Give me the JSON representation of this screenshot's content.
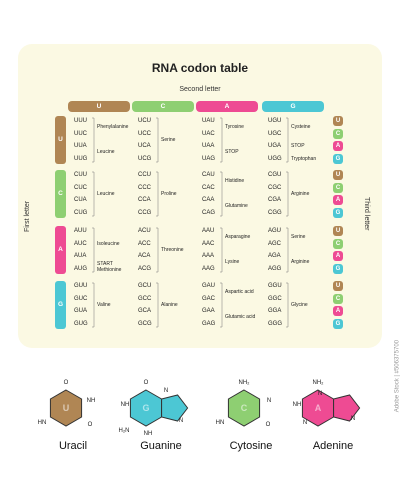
{
  "title": "RNA codon table",
  "second_letter_label": "Second letter",
  "first_letter_label": "First letter",
  "third_letter_label": "Third letter",
  "colors": {
    "U": "#b08654",
    "C": "#8ecf72",
    "A": "#ee4b93",
    "G": "#4cc7d4",
    "panel": "#fbf9e3"
  },
  "second_letters": [
    "U",
    "C",
    "A",
    "G"
  ],
  "third_letters": [
    "U",
    "C",
    "A",
    "G"
  ],
  "rows": [
    {
      "first": "U",
      "codons": [
        [
          "UUU",
          "UCU",
          "UAU",
          "UGU"
        ],
        [
          "UUC",
          "UCC",
          "UAC",
          "UGC"
        ],
        [
          "UUA",
          "UCA",
          "UAA",
          "UGA"
        ],
        [
          "UUG",
          "UCG",
          "UAG",
          "UGG"
        ]
      ],
      "amino": {
        "U": [
          {
            "name": "Phenylalanine",
            "at": 0.5
          },
          {
            "name": "Leucine",
            "at": 2.5
          }
        ],
        "C": [
          {
            "name": "Serine",
            "at": 1.5
          }
        ],
        "A": [
          {
            "name": "Tyrosine",
            "at": 0.5
          },
          {
            "name": "STOP",
            "at": 2.5
          }
        ],
        "G": [
          {
            "name": "Cysteine",
            "at": 0.5
          },
          {
            "name": "STOP",
            "at": 2
          },
          {
            "name": "Tryptophan",
            "at": 3
          }
        ]
      }
    },
    {
      "first": "C",
      "codons": [
        [
          "CUU",
          "CCU",
          "CAU",
          "CGU"
        ],
        [
          "CUC",
          "CCC",
          "CAC",
          "CGC"
        ],
        [
          "CUA",
          "CCA",
          "CAA",
          "CGA"
        ],
        [
          "CUG",
          "CCG",
          "CAG",
          "CGG"
        ]
      ],
      "amino": {
        "U": [
          {
            "name": "Leucine",
            "at": 1.5
          }
        ],
        "C": [
          {
            "name": "Proline",
            "at": 1.5
          }
        ],
        "A": [
          {
            "name": "Histidine",
            "at": 0.5
          },
          {
            "name": "Glutamine",
            "at": 2.5
          }
        ],
        "G": [
          {
            "name": "Arginine",
            "at": 1.5
          }
        ]
      }
    },
    {
      "first": "A",
      "codons": [
        [
          "AUU",
          "ACU",
          "AAU",
          "AGU"
        ],
        [
          "AUC",
          "ACC",
          "AAC",
          "AGC"
        ],
        [
          "AUA",
          "ACA",
          "AAA",
          "AGA"
        ],
        [
          "AUG",
          "ACG",
          "AAG",
          "AGG"
        ]
      ],
      "amino": {
        "U": [
          {
            "name": "Isoleucine",
            "at": 1
          },
          {
            "name": "START",
            "at": 2.6
          },
          {
            "name": "Methionine",
            "at": 3.1
          }
        ],
        "C": [
          {
            "name": "Threonine",
            "at": 1.5
          }
        ],
        "A": [
          {
            "name": "Asparagine",
            "at": 0.5
          },
          {
            "name": "Lysine",
            "at": 2.5
          }
        ],
        "G": [
          {
            "name": "Serine",
            "at": 0.5
          },
          {
            "name": "Arginine",
            "at": 2.5
          }
        ]
      }
    },
    {
      "first": "G",
      "codons": [
        [
          "GUU",
          "GCU",
          "GAU",
          "GGU"
        ],
        [
          "GUC",
          "GCC",
          "GAC",
          "GGC"
        ],
        [
          "GUA",
          "GCA",
          "GAA",
          "GGA"
        ],
        [
          "GUG",
          "GCG",
          "GAG",
          "GGG"
        ]
      ],
      "amino": {
        "U": [
          {
            "name": "Valine",
            "at": 1.5
          }
        ],
        "C": [
          {
            "name": "Alanine",
            "at": 1.5
          }
        ],
        "A": [
          {
            "name": "Aspartic acid",
            "at": 0.5
          },
          {
            "name": "Glutamic acid",
            "at": 2.5
          }
        ],
        "G": [
          {
            "name": "Glycine",
            "at": 1.5
          }
        ]
      }
    }
  ],
  "molecules": [
    {
      "name": "Uracil",
      "letter": "U",
      "color": "#b08654",
      "atoms": {
        "top": "O",
        "right": "NH",
        "bottom_right": "O",
        "bottom_left": "HN"
      }
    },
    {
      "name": "Guanine",
      "letter": "G",
      "color": "#4cc7d4",
      "atoms": {
        "top": "O",
        "nh": "NH",
        "bottom": "NH",
        "n_ring": "N",
        "n_ring2": "N",
        "h2n": "H₂N"
      }
    },
    {
      "name": "Cytosine",
      "letter": "C",
      "color": "#8ecf72",
      "atoms": {
        "top": "NH₂",
        "right": "N",
        "bottom_right": "O",
        "bottom_left": "HN"
      }
    },
    {
      "name": "Adenine",
      "letter": "A",
      "color": "#ee4b93",
      "atoms": {
        "top": "NH₂",
        "n1": "N",
        "n2": "N",
        "n3": "N",
        "nh": "NH"
      }
    }
  ],
  "watermark": "Adobe Stock | #506375700"
}
